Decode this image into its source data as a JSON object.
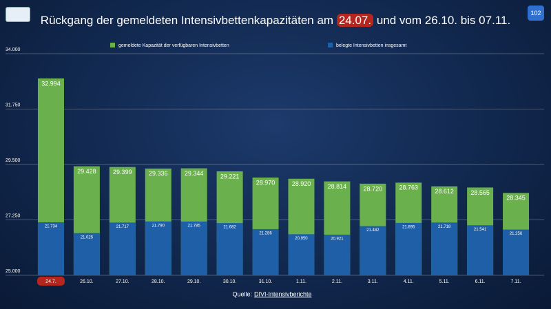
{
  "chart_data": {
    "type": "bar",
    "title_parts": [
      "Rückgang der gemeldeten Intensivbettenkapazitäten am",
      "24.07.",
      "und vom 26.10. bis 07.11."
    ],
    "page_number": "102",
    "source_label": "Quelle:",
    "source_link": "DIVI-Intensivberichte",
    "categories": [
      "24.7.",
      "26.10.",
      "27.10.",
      "28.10.",
      "29.10.",
      "30.10.",
      "31.10.",
      "1.11.",
      "2.11.",
      "3.11.",
      "4.11.",
      "5.11.",
      "6.11.",
      "7.11."
    ],
    "series": [
      {
        "name": "gemeldete Kapazität der verfügbaren Intensivbetten",
        "color": "#6ab04c",
        "values": [
          32994,
          29428,
          29399,
          29336,
          29344,
          29221,
          28970,
          28920,
          28814,
          28720,
          28763,
          28612,
          28565,
          28345
        ],
        "value_labels": [
          "32.994",
          "29.428",
          "29.399",
          "29.336",
          "29.344",
          "29.221",
          "28.970",
          "28.920",
          "28.814",
          "28.720",
          "28.763",
          "28.612",
          "28.565",
          "28.345"
        ]
      },
      {
        "name": "belegte Intensivbetten insgesamt",
        "color": "#1e5fa8",
        "axis": "y2",
        "values": [
          21734,
          21025,
          21717,
          21790,
          21785,
          21682,
          21286,
          20950,
          20921,
          21482,
          21695,
          21718,
          21541,
          21256
        ],
        "value_labels": [
          "21.734",
          "21.025",
          "21.717",
          "21.790",
          "21.785",
          "21.682",
          "21.286",
          "20.950",
          "20.921",
          "21.482",
          "21.695",
          "21.718",
          "21.541",
          "21.256"
        ]
      }
    ],
    "ylim": [
      25000,
      34000
    ],
    "yticks": [
      {
        "value": 25000,
        "label": "25.000"
      },
      {
        "value": 27250,
        "label": "27.250"
      },
      {
        "value": 29500,
        "label": "29.500"
      },
      {
        "value": 31750,
        "label": "31.750"
      },
      {
        "value": 34000,
        "label": "34.000"
      }
    ],
    "y2lim": [
      18250,
      32820
    ],
    "grid": true
  }
}
